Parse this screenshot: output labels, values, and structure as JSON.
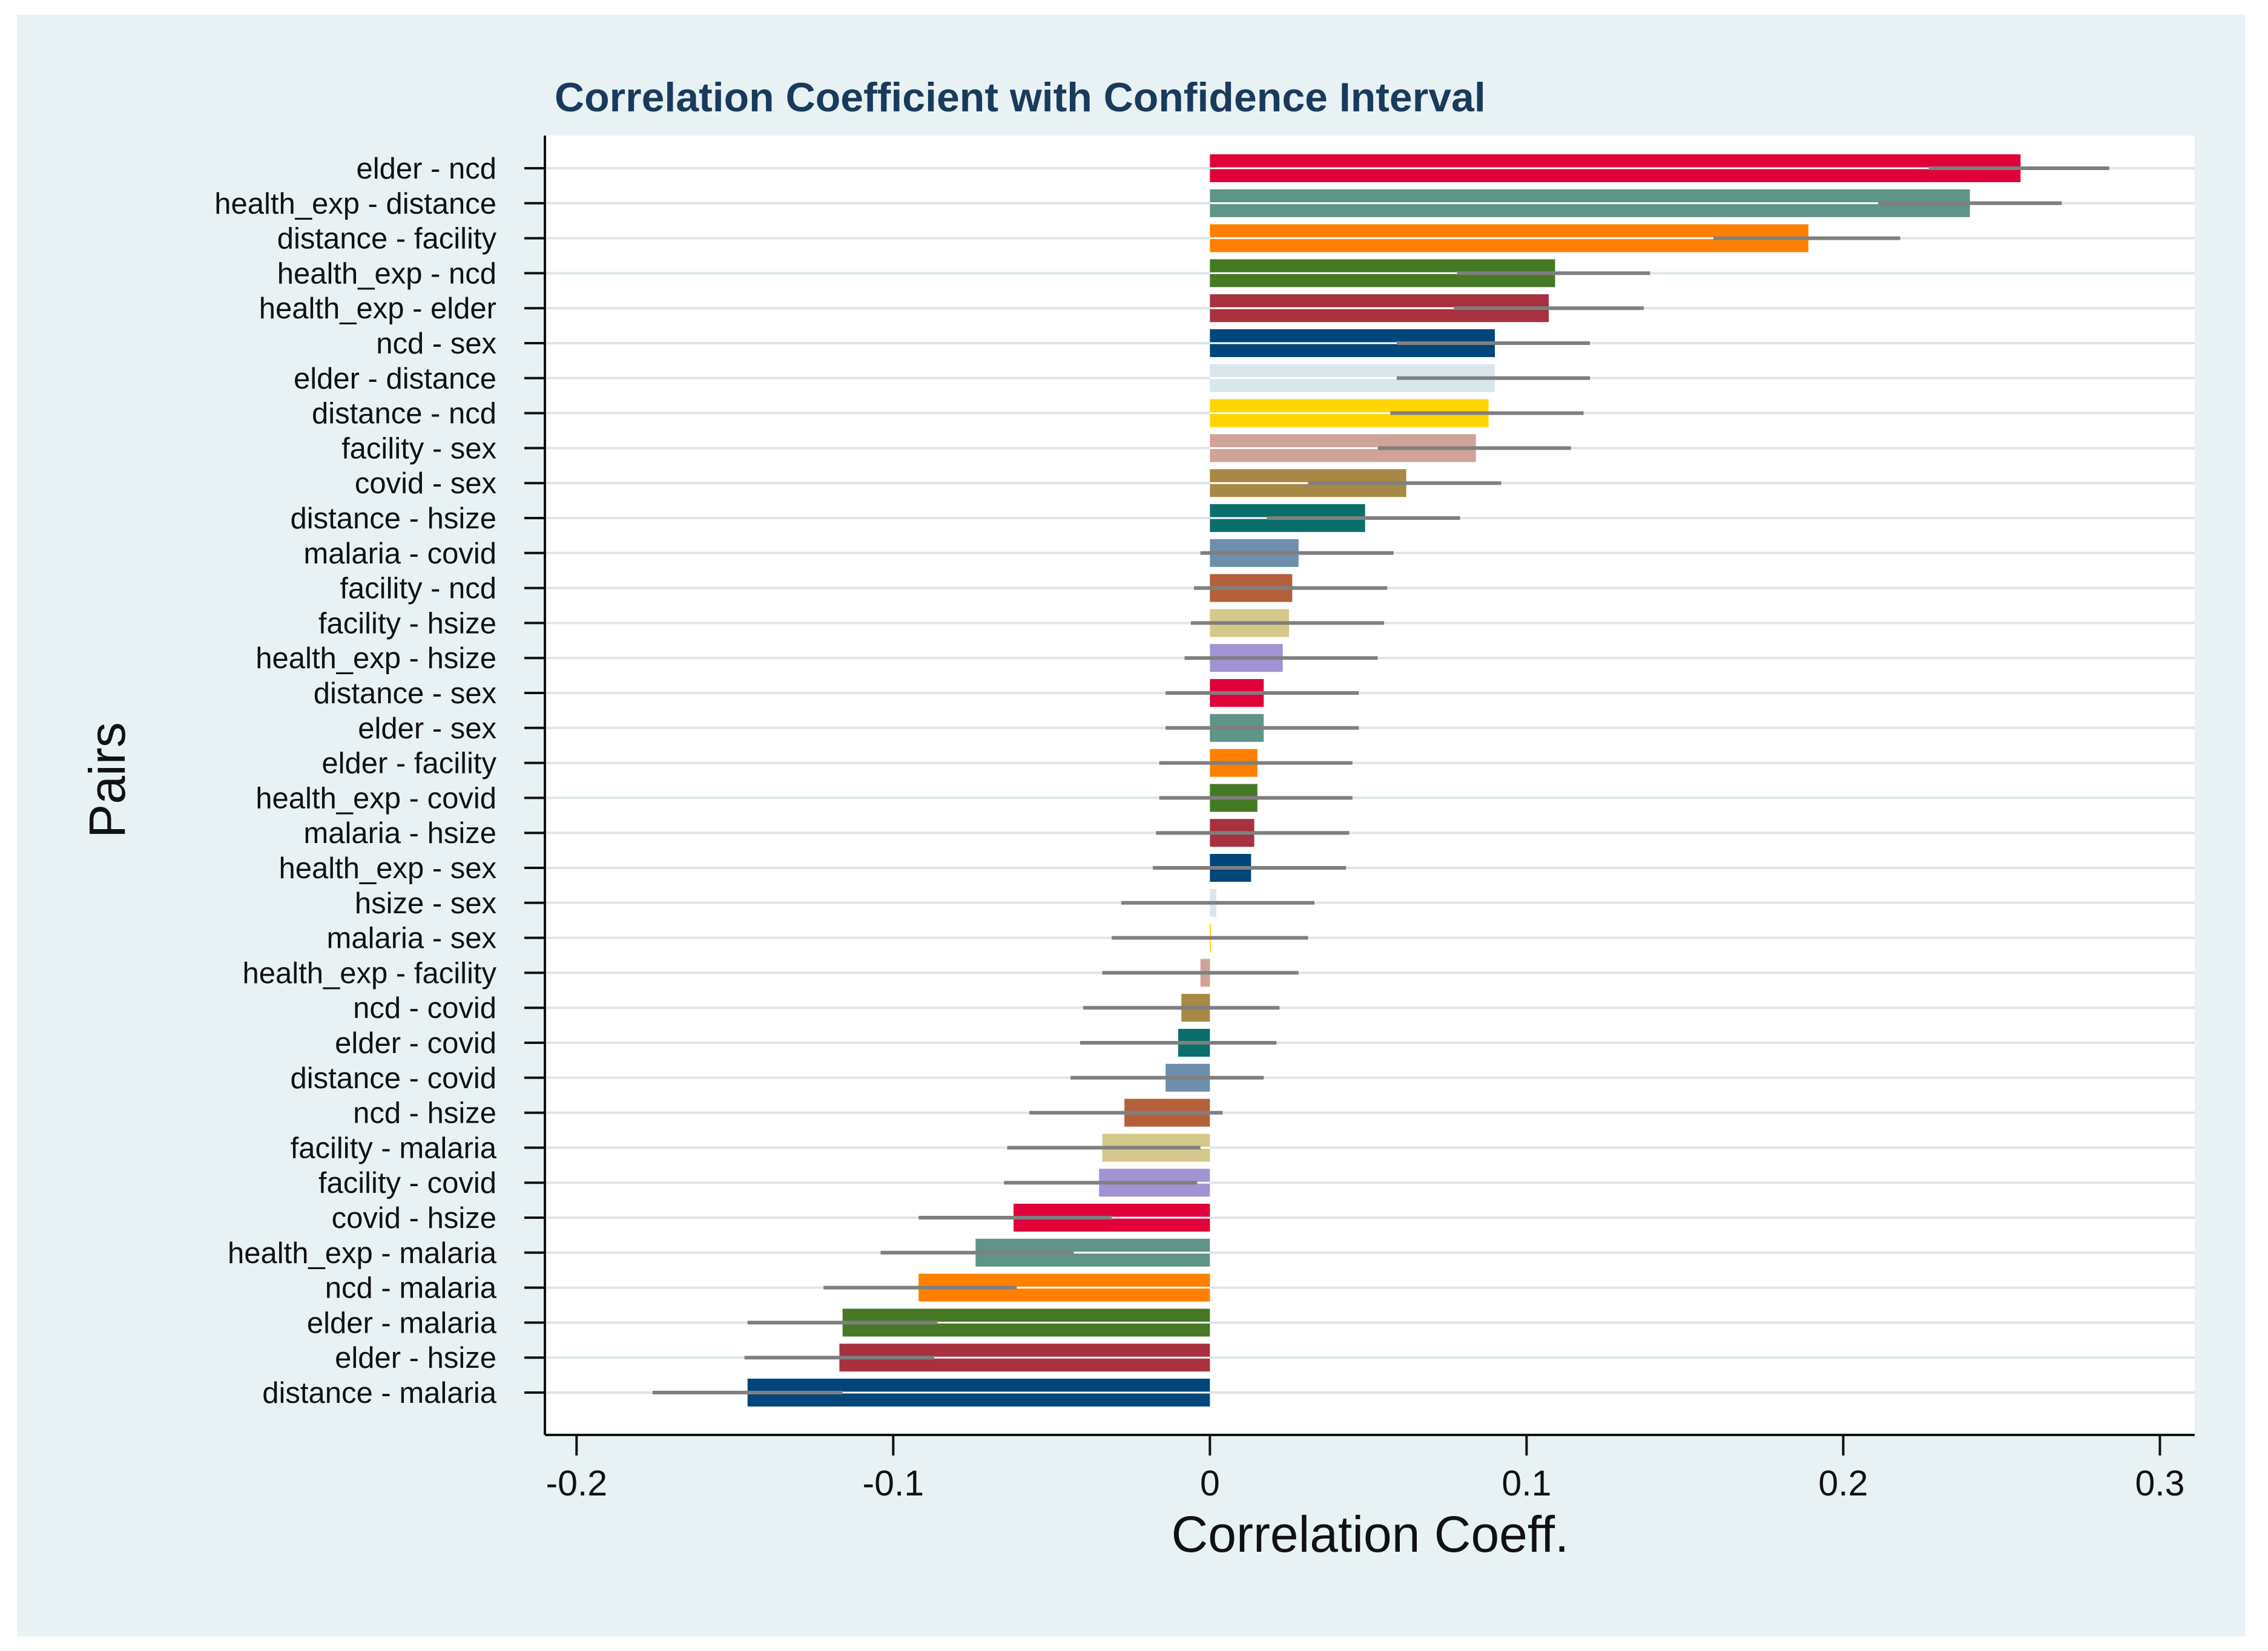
{
  "chart_data": {
    "type": "bar",
    "orientation": "horizontal",
    "title": "Correlation Coefficient with Confidence Interval",
    "xlabel": "Correlation Coeff.",
    "ylabel": "Pairs",
    "xlim": [
      -0.21,
      0.311
    ],
    "xticks": [
      -0.2,
      -0.1,
      0,
      0.1,
      0.2,
      0.3
    ],
    "xtick_labels": [
      "-0.2",
      "-0.1",
      "0",
      "0.1",
      "0.2",
      "0.3"
    ],
    "grid": true,
    "series": [
      {
        "label": "elder - ncd",
        "value": 0.256,
        "ci": [
          0.227,
          0.284
        ],
        "color": "#e0003a"
      },
      {
        "label": "health_exp - distance",
        "value": 0.24,
        "ci": [
          0.211,
          0.269
        ],
        "color": "#5f9488"
      },
      {
        "label": "distance - facility",
        "value": 0.189,
        "ci": [
          0.159,
          0.218
        ],
        "color": "#ff8000"
      },
      {
        "label": "health_exp - ncd",
        "value": 0.109,
        "ci": [
          0.078,
          0.139
        ],
        "color": "#467825"
      },
      {
        "label": "health_exp - elder",
        "value": 0.107,
        "ci": [
          0.077,
          0.137
        ],
        "color": "#a8303f"
      },
      {
        "label": "ncd - sex",
        "value": 0.09,
        "ci": [
          0.059,
          0.12
        ],
        "color": "#00467a"
      },
      {
        "label": "elder - distance",
        "value": 0.09,
        "ci": [
          0.059,
          0.12
        ],
        "color": "#d9e6ec"
      },
      {
        "label": "distance - ncd",
        "value": 0.088,
        "ci": [
          0.057,
          0.118
        ],
        "color": "#ffd600"
      },
      {
        "label": "facility - sex",
        "value": 0.084,
        "ci": [
          0.053,
          0.114
        ],
        "color": "#cfa39a"
      },
      {
        "label": "covid - sex",
        "value": 0.062,
        "ci": [
          0.031,
          0.092
        ],
        "color": "#a88845"
      },
      {
        "label": "distance - hsize",
        "value": 0.049,
        "ci": [
          0.018,
          0.079
        ],
        "color": "#0a6f6a"
      },
      {
        "label": "malaria - covid",
        "value": 0.028,
        "ci": [
          -0.003,
          0.058
        ],
        "color": "#6e8fac"
      },
      {
        "label": "facility - ncd",
        "value": 0.026,
        "ci": [
          -0.005,
          0.056
        ],
        "color": "#b4603a"
      },
      {
        "label": "facility - hsize",
        "value": 0.025,
        "ci": [
          -0.006,
          0.055
        ],
        "color": "#d4c88a"
      },
      {
        "label": "health_exp - hsize",
        "value": 0.023,
        "ci": [
          -0.008,
          0.053
        ],
        "color": "#a293d4"
      },
      {
        "label": "distance - sex",
        "value": 0.017,
        "ci": [
          -0.014,
          0.047
        ],
        "color": "#e0003a"
      },
      {
        "label": "elder - sex",
        "value": 0.017,
        "ci": [
          -0.014,
          0.047
        ],
        "color": "#5f9488"
      },
      {
        "label": "elder - facility",
        "value": 0.015,
        "ci": [
          -0.016,
          0.045
        ],
        "color": "#ff8000"
      },
      {
        "label": "health_exp - covid",
        "value": 0.015,
        "ci": [
          -0.016,
          0.045
        ],
        "color": "#467825"
      },
      {
        "label": "malaria - hsize",
        "value": 0.014,
        "ci": [
          -0.017,
          0.044
        ],
        "color": "#a8303f"
      },
      {
        "label": "health_exp - sex",
        "value": 0.013,
        "ci": [
          -0.018,
          0.043
        ],
        "color": "#00467a"
      },
      {
        "label": "hsize - sex",
        "value": 0.002,
        "ci": [
          -0.028,
          0.033
        ],
        "color": "#d9e6ec"
      },
      {
        "label": "malaria - sex",
        "value": 0.0,
        "ci": [
          -0.031,
          0.031
        ],
        "color": "#ffd600"
      },
      {
        "label": "health_exp - facility",
        "value": -0.003,
        "ci": [
          -0.034,
          0.028
        ],
        "color": "#cfa39a"
      },
      {
        "label": "ncd - covid",
        "value": -0.009,
        "ci": [
          -0.04,
          0.022
        ],
        "color": "#a88845"
      },
      {
        "label": "elder - covid",
        "value": -0.01,
        "ci": [
          -0.041,
          0.021
        ],
        "color": "#0a6f6a"
      },
      {
        "label": "distance - covid",
        "value": -0.014,
        "ci": [
          -0.044,
          0.017
        ],
        "color": "#6e8fac"
      },
      {
        "label": "ncd - hsize",
        "value": -0.027,
        "ci": [
          -0.057,
          0.004
        ],
        "color": "#b4603a"
      },
      {
        "label": "facility - malaria",
        "value": -0.034,
        "ci": [
          -0.064,
          -0.003
        ],
        "color": "#d4c88a"
      },
      {
        "label": "facility - covid",
        "value": -0.035,
        "ci": [
          -0.065,
          -0.004
        ],
        "color": "#a293d4"
      },
      {
        "label": "covid - hsize",
        "value": -0.062,
        "ci": [
          -0.092,
          -0.031
        ],
        "color": "#e0003a"
      },
      {
        "label": "health_exp - malaria",
        "value": -0.074,
        "ci": [
          -0.104,
          -0.043
        ],
        "color": "#5f9488"
      },
      {
        "label": "ncd - malaria",
        "value": -0.092,
        "ci": [
          -0.122,
          -0.061
        ],
        "color": "#ff8000"
      },
      {
        "label": "elder - malaria",
        "value": -0.116,
        "ci": [
          -0.146,
          -0.086
        ],
        "color": "#467825"
      },
      {
        "label": "elder - hsize",
        "value": -0.117,
        "ci": [
          -0.147,
          -0.087
        ],
        "color": "#a8303f"
      },
      {
        "label": "distance - malaria",
        "value": -0.146,
        "ci": [
          -0.176,
          -0.116
        ],
        "color": "#00467a"
      }
    ]
  }
}
